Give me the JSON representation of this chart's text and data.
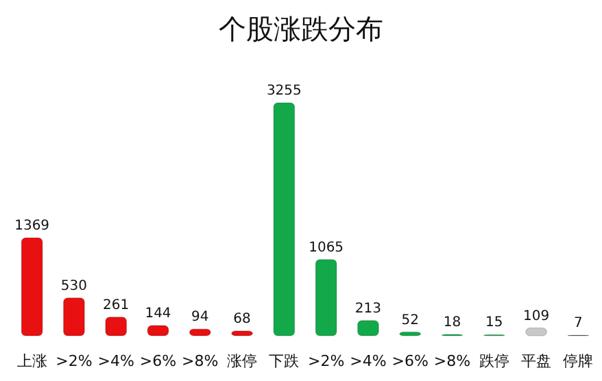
{
  "chart_data": {
    "type": "bar",
    "title": "个股涨跌分布",
    "categories": [
      "上涨",
      ">2%",
      ">4%",
      ">6%",
      ">8%",
      "涨停",
      "下跌",
      ">2%",
      ">4%",
      ">6%",
      ">8%",
      "跌停",
      "平盘",
      "停牌"
    ],
    "values": [
      1369,
      530,
      261,
      144,
      94,
      68,
      3255,
      1065,
      213,
      52,
      18,
      15,
      109,
      7
    ],
    "colors": [
      "#e81010",
      "#e81010",
      "#e81010",
      "#e81010",
      "#e81010",
      "#e81010",
      "#13a84a",
      "#13a84a",
      "#13a84a",
      "#13a84a",
      "#13a84a",
      "#13a84a",
      "#c8c8c8",
      "#303030"
    ],
    "data_labels": true
  }
}
